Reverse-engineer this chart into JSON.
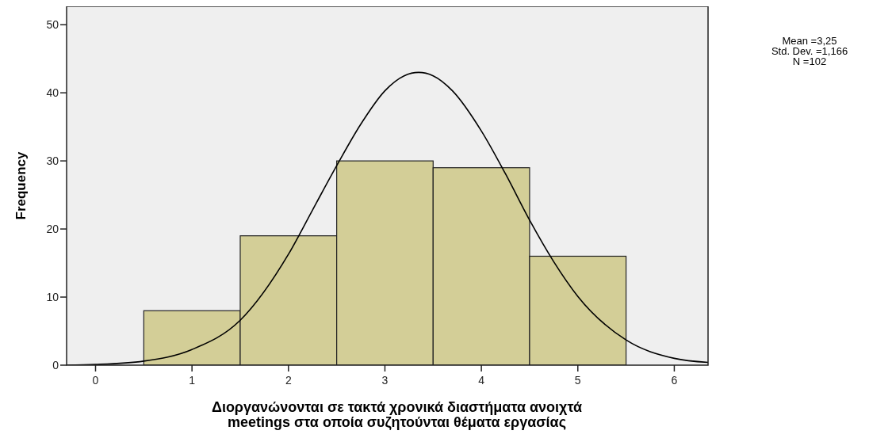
{
  "chart_data": {
    "type": "histogram",
    "ylabel": "Frequency",
    "xlabel": "Διοργανώνονται σε τακτά χρονικά διαστήματα ανοιχτά\nmeetings στα οποία συζητούνται θέματα εργασίας",
    "bins": [
      0.5,
      1.5,
      2.5,
      3.5,
      4.5,
      5.5
    ],
    "values": [
      8,
      19,
      30,
      29,
      16
    ],
    "color": "#d3ce97",
    "xlim": [
      -0.3,
      6.35
    ],
    "xticks": [
      0,
      1,
      2,
      3,
      4,
      5,
      6
    ],
    "ylim": [
      0,
      52.7
    ],
    "yticks": [
      0,
      10,
      20,
      30,
      40,
      50
    ],
    "series": [
      {
        "type": "line",
        "color": "#000000",
        "x": [
          -0.3,
          0,
          0.5,
          1,
          1.5,
          2,
          2.25,
          2.5,
          2.75,
          3,
          3.2,
          3.35,
          3.5,
          3.7,
          4,
          4.25,
          4.5,
          4.75,
          5,
          5.5,
          6,
          6.35
        ],
        "values": [
          0,
          0.1,
          0.6,
          2.3,
          6.6,
          16.3,
          22.8,
          29.3,
          35.4,
          40.3,
          42.5,
          43,
          42.5,
          40.3,
          34.4,
          28.1,
          21.3,
          15.2,
          10.1,
          3.7,
          1,
          0.4
        ]
      }
    ],
    "annotations": [
      "Mean =3,25",
      "Std. Dev. =1,166",
      "N =102"
    ],
    "grid": false
  }
}
